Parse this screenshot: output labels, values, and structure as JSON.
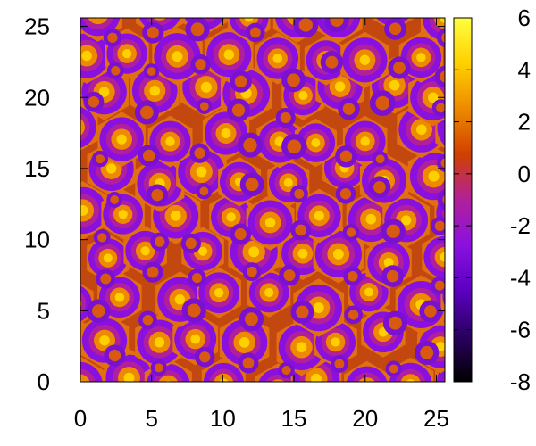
{
  "chart_data": {
    "type": "heatmap",
    "title": "",
    "xlabel": "",
    "ylabel": "",
    "xlim": [
      0,
      25.6
    ],
    "ylim": [
      0,
      25.6
    ],
    "x_ticks": [
      0,
      5,
      10,
      15,
      20,
      25
    ],
    "y_ticks": [
      0,
      5,
      10,
      15,
      20,
      25
    ],
    "colorbar": {
      "range": [
        -8,
        6
      ],
      "ticks": [
        -8,
        -6,
        -4,
        -2,
        0,
        2,
        4,
        6
      ],
      "palette": [
        "#000000",
        "#2a0060",
        "#5a00c0",
        "#8a10e0",
        "#b1209a",
        "#d04000",
        "#ee8a00",
        "#ffd000",
        "#ffff40"
      ]
    },
    "pattern": "quasi-periodic cellular field: bright yellow/orange peaks at cell centers, each surrounded by a violet ring and a red-orange hexagonal boundary",
    "grid": false,
    "legend": "none"
  }
}
